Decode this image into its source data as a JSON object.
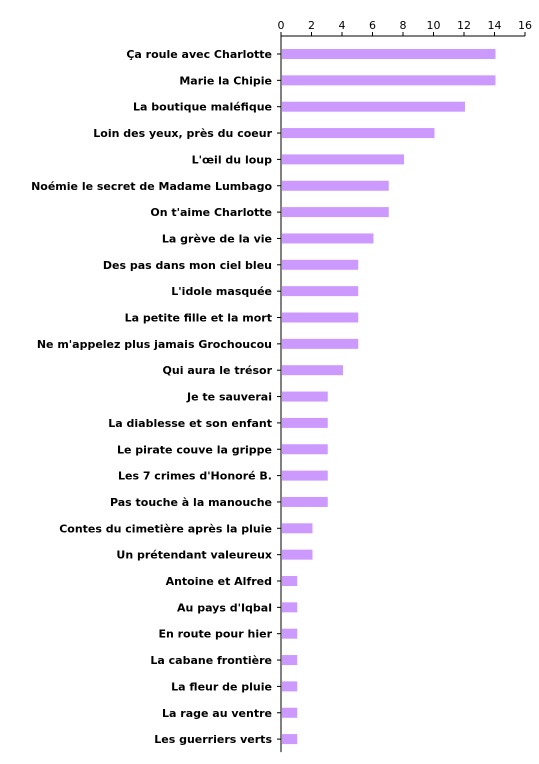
{
  "chart_data": {
    "type": "bar",
    "orientation": "horizontal",
    "title": "",
    "xlabel": "",
    "ylabel": "",
    "xlim": [
      0,
      16
    ],
    "x_ticks": [
      0,
      2,
      4,
      6,
      8,
      10,
      12,
      14,
      16
    ],
    "x_axis_position": "top",
    "grid": false,
    "legend": "none",
    "bar_color": "#cc99ff",
    "categories": [
      "Ça roule avec Charlotte",
      "Marie la Chipie",
      "La boutique maléfique",
      "Loin des yeux, près du coeur",
      "L'œil du loup",
      "Noémie le secret de Madame Lumbago",
      "On t'aime Charlotte",
      "La grève de la vie",
      "Des pas dans mon ciel bleu",
      "L'idole masquée",
      "La petite fille et la mort",
      "Ne m'appelez plus jamais Grochoucou",
      "Qui aura le trésor",
      "Je te sauverai",
      "La diablesse et son enfant",
      "Le pirate couve la grippe",
      "Les 7 crimes d'Honoré B.",
      "Pas touche à la manouche",
      "Contes du cimetière après la pluie",
      "Un prétendant valeureux",
      "Antoine et Alfred",
      "Au pays d'Iqbal",
      "En route pour hier",
      "La cabane frontière",
      "La fleur de pluie",
      "La rage au ventre",
      "Les guerriers verts"
    ],
    "values": [
      14,
      14,
      12,
      10,
      8,
      7,
      7,
      6,
      5,
      5,
      5,
      5,
      4,
      3,
      3,
      3,
      3,
      3,
      2,
      2,
      1,
      1,
      1,
      1,
      1,
      1,
      1
    ]
  }
}
